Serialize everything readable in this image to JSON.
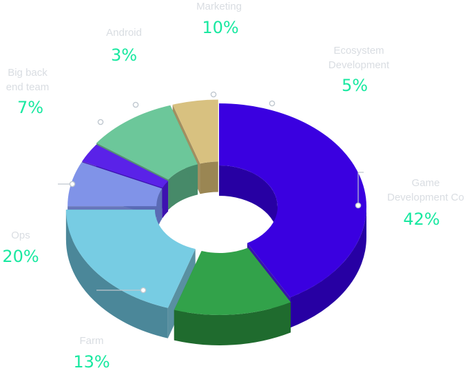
{
  "chart_data": {
    "type": "pie",
    "variant": "3d-donut",
    "title": "",
    "slices": [
      {
        "name": "Game Dev Companies",
        "label_lines": [
          "Game",
          "Development Co"
        ],
        "value": 42,
        "percent_text": "42%",
        "color": "#3a00e0",
        "side_color": "#2700a3"
      },
      {
        "name": "Farm",
        "label_lines": [
          "Farm"
        ],
        "value": 13,
        "percent_text": "13%",
        "color": "#32a24a",
        "side_color": "#1f6b2e"
      },
      {
        "name": "Ops",
        "label_lines": [
          "Ops"
        ],
        "value": 20,
        "percent_text": "20%",
        "color": "#77cce3",
        "side_color": "#4b8799"
      },
      {
        "name": "Big back end team",
        "label_lines": [
          "Big back",
          "end team"
        ],
        "value": 7,
        "percent_text": "7%",
        "color": "#8093e8",
        "side_color": "#5a6bb5"
      },
      {
        "name": "Android",
        "label_lines": [
          "Android"
        ],
        "value": 3,
        "percent_text": "3%",
        "color": "#5a22e8",
        "side_color": "#3e12b0"
      },
      {
        "name": "Marketing",
        "label_lines": [
          "Marketing"
        ],
        "value": 10,
        "percent_text": "10%",
        "color": "#6cc79a",
        "side_color": "#478a69"
      },
      {
        "name": "Ecosystem Development",
        "label_lines": [
          "Ecosystem",
          "Development"
        ],
        "value": 5,
        "percent_text": "5%",
        "color": "#d8c180",
        "side_color": "#9a8653"
      }
    ],
    "legend": "none",
    "colors": {
      "percent_text": "#18e8a0",
      "name_text": "#d9dde2",
      "leader": "#bfc7cf"
    }
  }
}
